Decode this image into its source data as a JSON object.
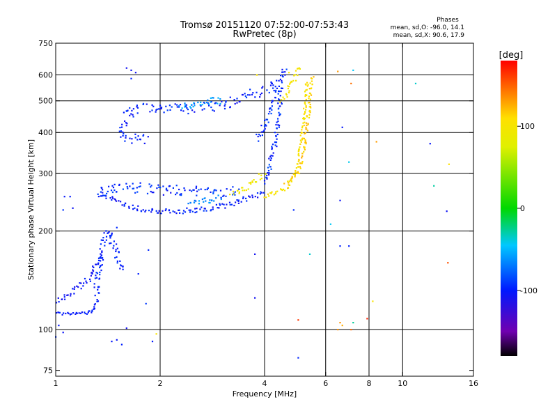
{
  "chart_data": {
    "type": "scatter",
    "title": "Tromsø 20151120 07:52:00-07:53:43",
    "subtitle": "RwPretec (8p)",
    "xlabel": "Frequency [MHz]",
    "ylabel": "Stationary phase Virtual Height [km]",
    "x_scale": "log2",
    "y_scale": "log",
    "xlim": [
      1,
      16
    ],
    "ylim": [
      72,
      750
    ],
    "x_ticks": [
      {
        "v": 1,
        "label": "1"
      },
      {
        "v": 2,
        "label": "2"
      },
      {
        "v": 4,
        "label": "4"
      },
      {
        "v": 6,
        "label": "6"
      },
      {
        "v": 8,
        "label": "8"
      },
      {
        "v": 10,
        "label": "10"
      },
      {
        "v": 16,
        "label": "16"
      }
    ],
    "x_grid": [
      2,
      4,
      6,
      8,
      10
    ],
    "y_ticks": [
      {
        "v": 75,
        "label": "75"
      },
      {
        "v": 100,
        "label": "100"
      },
      {
        "v": 200,
        "label": "200"
      },
      {
        "v": 300,
        "label": "300"
      },
      {
        "v": 400,
        "label": "400"
      },
      {
        "v": 500,
        "label": "500"
      },
      {
        "v": 600,
        "label": "600"
      },
      {
        "v": 750,
        "label": "750"
      }
    ],
    "y_grid": [
      100,
      200,
      300,
      400,
      500,
      600
    ],
    "grid": true,
    "legend": {
      "heading": "Phases",
      "line1": "mean, sd,O: -96.0, 14.1",
      "line2": "mean, sd,X:  90.6, 17.9"
    },
    "colorbar": {
      "label": "[deg]",
      "range": [
        -180,
        180
      ],
      "ticks": [
        {
          "v": 100,
          "label": "100"
        },
        {
          "v": 0,
          "label": "0"
        },
        {
          "v": -100,
          "label": "-100"
        }
      ],
      "stops": [
        {
          "v": -180,
          "color": "#000000"
        },
        {
          "v": -150,
          "color": "#7000b0"
        },
        {
          "v": -100,
          "color": "#0018ff"
        },
        {
          "v": -45,
          "color": "#00c8ff"
        },
        {
          "v": 0,
          "color": "#00d800"
        },
        {
          "v": 75,
          "color": "#e0f000"
        },
        {
          "v": 110,
          "color": "#ffe000"
        },
        {
          "v": 180,
          "color": "#ff0000"
        }
      ]
    },
    "series": [
      {
        "mode": "curve",
        "phase": -100,
        "spread": 8,
        "jitter": 0.012,
        "pts": [
          [
            1.0,
            112
          ],
          [
            1.1,
            112
          ],
          [
            1.22,
            112
          ],
          [
            1.27,
            114
          ],
          [
            1.3,
            118
          ]
        ]
      },
      {
        "mode": "curve",
        "phase": -105,
        "spread": 10,
        "jitter": 0.03,
        "pts": [
          [
            1.0,
            120
          ],
          [
            1.08,
            127
          ],
          [
            1.16,
            134
          ],
          [
            1.25,
            142
          ],
          [
            1.32,
            160
          ],
          [
            1.38,
            172
          ]
        ]
      },
      {
        "mode": "curve",
        "phase": -98,
        "spread": 10,
        "jitter": 0.04,
        "pts": [
          [
            1.3,
            120
          ],
          [
            1.34,
            165
          ],
          [
            1.38,
            190
          ],
          [
            1.42,
            198
          ],
          [
            1.48,
            178
          ],
          [
            1.55,
            150
          ]
        ]
      },
      {
        "mode": "curve",
        "phase": -100,
        "spread": 12,
        "jitter": 0.025,
        "pts": [
          [
            1.35,
            270
          ],
          [
            1.4,
            258
          ],
          [
            1.5,
            245
          ],
          [
            1.7,
            235
          ],
          [
            2.0,
            230
          ],
          [
            2.5,
            231
          ],
          [
            3.0,
            238
          ],
          [
            3.5,
            250
          ],
          [
            4.0,
            262
          ]
        ]
      },
      {
        "mode": "curve",
        "phase": -95,
        "spread": 15,
        "jitter": 0.05,
        "pts": [
          [
            1.3,
            260
          ],
          [
            1.6,
            272
          ],
          [
            2.0,
            268
          ],
          [
            2.5,
            265
          ],
          [
            3.0,
            262
          ],
          [
            3.4,
            264
          ]
        ]
      },
      {
        "mode": "curve",
        "phase": -98,
        "spread": 12,
        "jitter": 0.05,
        "pts": [
          [
            1.55,
            405
          ],
          [
            1.6,
            450
          ],
          [
            1.65,
            462
          ],
          [
            1.78,
            472
          ],
          [
            2.0,
            478
          ],
          [
            2.5,
            474
          ],
          [
            3.0,
            485
          ],
          [
            3.5,
            512
          ],
          [
            4.0,
            540
          ],
          [
            4.4,
            560
          ]
        ]
      },
      {
        "mode": "curve",
        "phase": -100,
        "spread": 10,
        "jitter": 0.04,
        "pts": [
          [
            1.55,
            400
          ],
          [
            1.6,
            380
          ],
          [
            1.7,
            385
          ],
          [
            1.85,
            380
          ]
        ]
      },
      {
        "mode": "curve",
        "phase": -95,
        "spread": 15,
        "jitter": 0.03,
        "pts": [
          [
            4.0,
            280
          ],
          [
            4.15,
            320
          ],
          [
            4.3,
            380
          ],
          [
            4.4,
            450
          ],
          [
            4.45,
            530
          ],
          [
            4.5,
            600
          ],
          [
            4.6,
            630
          ]
        ]
      },
      {
        "mode": "curve",
        "phase": -95,
        "spread": 12,
        "jitter": 0.03,
        "pts": [
          [
            3.8,
            380
          ],
          [
            4.0,
            420
          ],
          [
            4.2,
            480
          ],
          [
            4.3,
            560
          ]
        ]
      },
      {
        "mode": "curve",
        "phase": 105,
        "spread": 12,
        "jitter": 0.02,
        "pts": [
          [
            4.0,
            255
          ],
          [
            4.3,
            262
          ],
          [
            4.6,
            270
          ],
          [
            4.8,
            285
          ],
          [
            5.0,
            320
          ],
          [
            5.1,
            380
          ],
          [
            5.2,
            440
          ],
          [
            5.25,
            500
          ],
          [
            5.3,
            580
          ]
        ]
      },
      {
        "mode": "curve",
        "phase": 115,
        "spread": 14,
        "jitter": 0.02,
        "pts": [
          [
            4.6,
            280
          ],
          [
            5.0,
            300
          ],
          [
            5.2,
            360
          ],
          [
            5.3,
            420
          ],
          [
            5.4,
            500
          ],
          [
            5.45,
            560
          ],
          [
            5.5,
            600
          ]
        ]
      },
      {
        "mode": "curve",
        "phase": 95,
        "spread": 10,
        "jitter": 0.03,
        "pts": [
          [
            3.2,
            260
          ],
          [
            3.4,
            265
          ],
          [
            3.7,
            280
          ],
          [
            4.0,
            300
          ]
        ]
      },
      {
        "mode": "curve",
        "phase": 100,
        "spread": 10,
        "jitter": 0.03,
        "pts": [
          [
            4.5,
            500
          ],
          [
            4.7,
            550
          ],
          [
            4.9,
            600
          ],
          [
            5.05,
            640
          ]
        ]
      },
      {
        "mode": "curve",
        "phase": -60,
        "spread": 12,
        "jitter": 0.03,
        "pts": [
          [
            2.3,
            480
          ],
          [
            2.6,
            490
          ],
          [
            2.8,
            500
          ],
          [
            3.0,
            500
          ]
        ]
      },
      {
        "mode": "curve",
        "phase": -65,
        "spread": 12,
        "jitter": 0.03,
        "pts": [
          [
            2.4,
            240
          ],
          [
            2.6,
            245
          ],
          [
            2.8,
            250
          ],
          [
            3.0,
            255
          ]
        ]
      },
      {
        "mode": "points",
        "phase": -100,
        "spread": 10,
        "pts": [
          [
            1.0,
            95
          ],
          [
            1.02,
            103
          ],
          [
            1.05,
            98
          ],
          [
            1.06,
            255
          ],
          [
            1.1,
            255
          ],
          [
            1.05,
            232
          ],
          [
            1.12,
            235
          ],
          [
            1.45,
            92
          ],
          [
            1.5,
            93
          ],
          [
            1.55,
            90
          ],
          [
            1.6,
            101
          ],
          [
            1.9,
            92
          ],
          [
            1.6,
            630
          ],
          [
            1.65,
            620
          ],
          [
            1.7,
            610
          ],
          [
            1.65,
            585
          ],
          [
            1.45,
            195
          ],
          [
            1.5,
            205
          ],
          [
            1.73,
            148
          ],
          [
            1.82,
            120
          ],
          [
            1.85,
            175
          ],
          [
            3.75,
            170
          ],
          [
            3.75,
            125
          ],
          [
            5.0,
            82
          ],
          [
            6.6,
            180
          ],
          [
            7.0,
            180
          ],
          [
            6.6,
            248
          ],
          [
            6.7,
            415
          ],
          [
            12.0,
            370
          ],
          [
            13.4,
            230
          ],
          [
            4.85,
            232
          ]
        ]
      },
      {
        "mode": "points",
        "phase": 150,
        "spread": 25,
        "pts": [
          [
            6.5,
            615
          ],
          [
            7.1,
            565
          ],
          [
            8.4,
            375
          ],
          [
            13.5,
            160
          ],
          [
            5.0,
            107
          ],
          [
            6.6,
            105
          ],
          [
            6.7,
            103
          ],
          [
            7.1,
            100
          ],
          [
            7.9,
            108
          ],
          [
            6.5,
            100
          ]
        ]
      },
      {
        "mode": "points",
        "phase": 100,
        "spread": 10,
        "pts": [
          [
            1.95,
            97
          ],
          [
            8.2,
            122
          ],
          [
            13.6,
            320
          ],
          [
            3.8,
            600
          ],
          [
            4.7,
            610
          ]
        ]
      },
      {
        "mode": "points",
        "phase": -35,
        "spread": 10,
        "pts": [
          [
            5.4,
            170
          ],
          [
            6.2,
            210
          ],
          [
            7.0,
            325
          ],
          [
            7.2,
            105
          ],
          [
            10.9,
            565
          ],
          [
            12.3,
            275
          ],
          [
            7.2,
            620
          ]
        ]
      }
    ]
  }
}
